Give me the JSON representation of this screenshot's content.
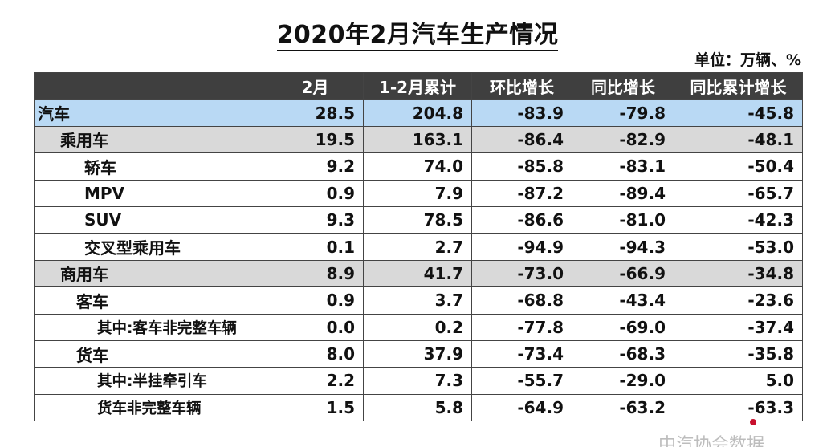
{
  "title": "2020年2月汽车生产情况",
  "unit": "单位：万辆、%",
  "columns": [
    "",
    "2月",
    "1-2月累计",
    "环比增长",
    "同比增长",
    "同比累计增长"
  ],
  "rows": [
    {
      "label": "汽车",
      "values": [
        "28.5",
        "204.8",
        "-83.9",
        "-79.8",
        "-45.8"
      ]
    },
    {
      "label": "乘用车",
      "values": [
        "19.5",
        "163.1",
        "-86.4",
        "-82.9",
        "-48.1"
      ]
    },
    {
      "label": "轿车",
      "values": [
        "9.2",
        "74.0",
        "-85.8",
        "-83.1",
        "-50.4"
      ]
    },
    {
      "label": "MPV",
      "values": [
        "0.9",
        "7.9",
        "-87.2",
        "-89.4",
        "-65.7"
      ]
    },
    {
      "label": "SUV",
      "values": [
        "9.3",
        "78.5",
        "-86.6",
        "-81.0",
        "-42.3"
      ]
    },
    {
      "label": "交叉型乘用车",
      "values": [
        "0.1",
        "2.7",
        "-94.9",
        "-94.3",
        "-53.0"
      ]
    },
    {
      "label": "商用车",
      "values": [
        "8.9",
        "41.7",
        "-73.0",
        "-66.9",
        "-34.8"
      ]
    },
    {
      "label": "客车",
      "values": [
        "0.9",
        "3.7",
        "-68.8",
        "-43.4",
        "-23.6"
      ]
    },
    {
      "label": "其中:客车非完整车辆",
      "values": [
        "0.0",
        "0.2",
        "-77.8",
        "-69.0",
        "-37.4"
      ]
    },
    {
      "label": "货车",
      "values": [
        "8.0",
        "37.9",
        "-73.4",
        "-68.3",
        "-35.8"
      ]
    },
    {
      "label": "其中:半挂牵引车",
      "values": [
        "2.2",
        "7.3",
        "-55.7",
        "-29.0",
        "5.0"
      ]
    },
    {
      "label": "货车非完整车辆",
      "values": [
        "1.5",
        "5.8",
        "-64.9",
        "-63.2",
        "-63.3"
      ]
    }
  ],
  "watermark": "中汽协会数据",
  "colors": {
    "header_bg": "#3f3f3f",
    "highlight_row": "#b9d9f4",
    "group_row": "#d9d9d9"
  }
}
